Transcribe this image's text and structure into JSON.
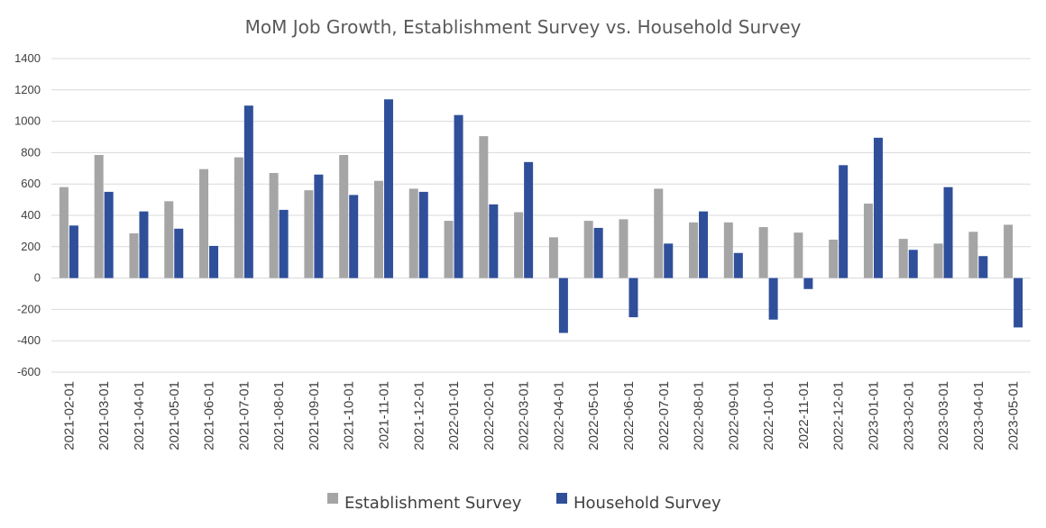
{
  "chart_data": {
    "type": "bar",
    "title": "MoM Job Growth, Establishment Survey vs. Household Survey",
    "xlabel": "",
    "ylabel": "",
    "ylim": [
      -600,
      1400
    ],
    "yticks": [
      1400,
      1200,
      1000,
      800,
      600,
      400,
      200,
      0,
      -200,
      -400,
      -600
    ],
    "grid": true,
    "legend_position": "bottom",
    "categories": [
      "2021-02-01",
      "2021-03-01",
      "2021-04-01",
      "2021-05-01",
      "2021-06-01",
      "2021-07-01",
      "2021-08-01",
      "2021-09-01",
      "2021-10-01",
      "2021-11-01",
      "2021-12-01",
      "2022-01-01",
      "2022-02-01",
      "2022-03-01",
      "2022-04-01",
      "2022-05-01",
      "2022-06-01",
      "2022-07-01",
      "2022-08-01",
      "2022-09-01",
      "2022-10-01",
      "2022-11-01",
      "2022-12-01",
      "2023-01-01",
      "2023-02-01",
      "2023-03-01",
      "2023-04-01",
      "2023-05-01"
    ],
    "series": [
      {
        "name": "Establishment Survey",
        "color": "#a5a5a5",
        "values": [
          580,
          785,
          285,
          490,
          695,
          770,
          670,
          560,
          785,
          620,
          570,
          365,
          905,
          420,
          260,
          365,
          375,
          570,
          355,
          355,
          325,
          290,
          245,
          475,
          250,
          220,
          295,
          340
        ]
      },
      {
        "name": "Household Survey",
        "color": "#2f4f9a",
        "values": [
          335,
          550,
          425,
          315,
          205,
          1100,
          435,
          660,
          530,
          1140,
          550,
          1040,
          470,
          740,
          -350,
          320,
          -250,
          220,
          425,
          160,
          -265,
          -70,
          720,
          895,
          180,
          580,
          140,
          -315
        ]
      }
    ]
  }
}
